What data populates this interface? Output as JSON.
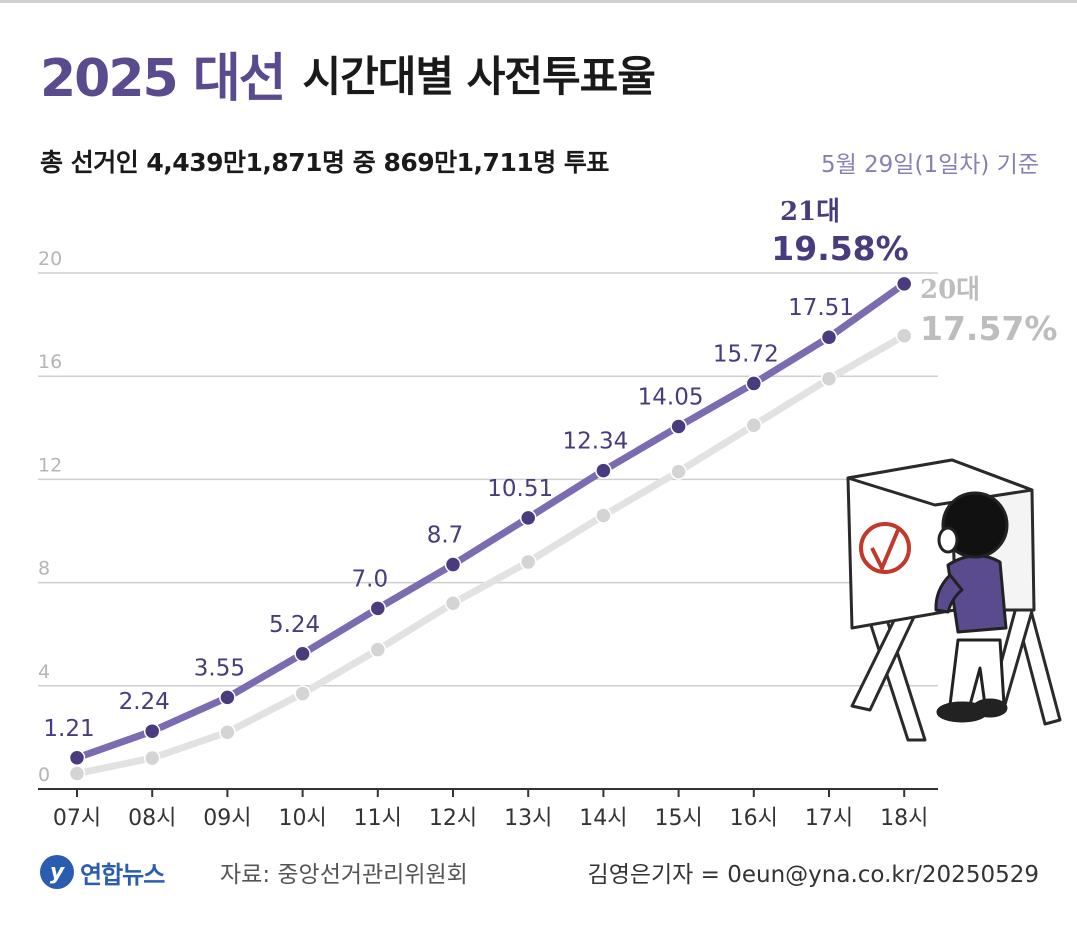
{
  "header": {
    "title_strong": "2025 대선",
    "title_rest": "시간대별 사전투표율",
    "subtitle": "총 선거인 4,439만1,871명 중 869만1,711명 투표",
    "basis": "5월 29일(1일차) 기준"
  },
  "footer": {
    "logo_text": "연합뉴스",
    "source": "자료: 중앙선거관리위원회",
    "credit": "김영은기자 = 0eun@yna.co.kr/20250529"
  },
  "chart_data": {
    "type": "line",
    "categories": [
      "07시",
      "08시",
      "09시",
      "10시",
      "11시",
      "12시",
      "13시",
      "14시",
      "15시",
      "16시",
      "17시",
      "18시"
    ],
    "yticks": [
      "0",
      "4",
      "8",
      "12",
      "16",
      "20"
    ],
    "ylim": [
      0,
      20
    ],
    "grid": true,
    "series": [
      {
        "name": "21대",
        "color": "#7b6bb0",
        "marker_color": "#4a3a7e",
        "values": [
          1.21,
          2.24,
          3.55,
          5.24,
          7.0,
          8.7,
          10.51,
          12.34,
          14.05,
          15.72,
          17.51,
          19.58
        ],
        "labels": [
          "1.21",
          "2.24",
          "3.55",
          "5.24",
          "7.0",
          "8.7",
          "10.51",
          "12.34",
          "14.05",
          "15.72",
          "17.51",
          ""
        ],
        "end_label": "19.58%"
      },
      {
        "name": "20대",
        "color": "#e2e2e2",
        "marker_color": "#d4d4d4",
        "values": [
          0.6,
          1.2,
          2.2,
          3.7,
          5.4,
          7.2,
          8.8,
          10.6,
          12.3,
          14.1,
          15.9,
          17.57
        ],
        "labels": [],
        "end_label": "17.57%"
      }
    ]
  }
}
